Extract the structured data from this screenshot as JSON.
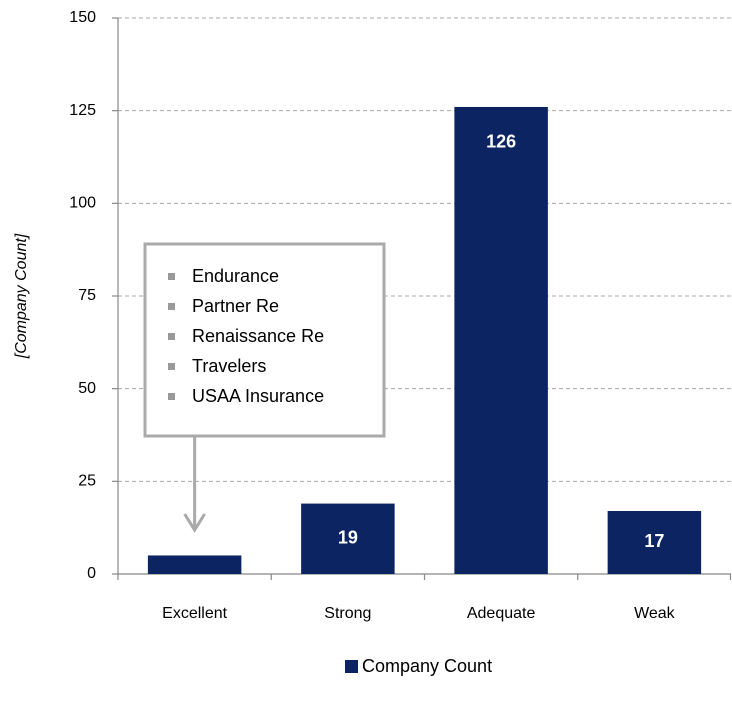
{
  "chart_data": {
    "type": "bar",
    "y_label": "[Company Count]",
    "categories": [
      "Excellent",
      "Strong",
      "Adequate",
      "Weak"
    ],
    "series": [
      {
        "name": "Company Count",
        "color": "#0c2461",
        "values": [
          5,
          19,
          126,
          17
        ]
      }
    ],
    "ylim": [
      0,
      150
    ],
    "yticks": [
      0,
      25,
      50,
      75,
      100,
      125,
      150
    ],
    "grid": true,
    "legend": "bottom",
    "annotation": {
      "category": 0,
      "items": [
        "Endurance",
        "Partner Re",
        "Renaissance Re",
        "Travelers",
        "USAA Insurance"
      ]
    }
  }
}
